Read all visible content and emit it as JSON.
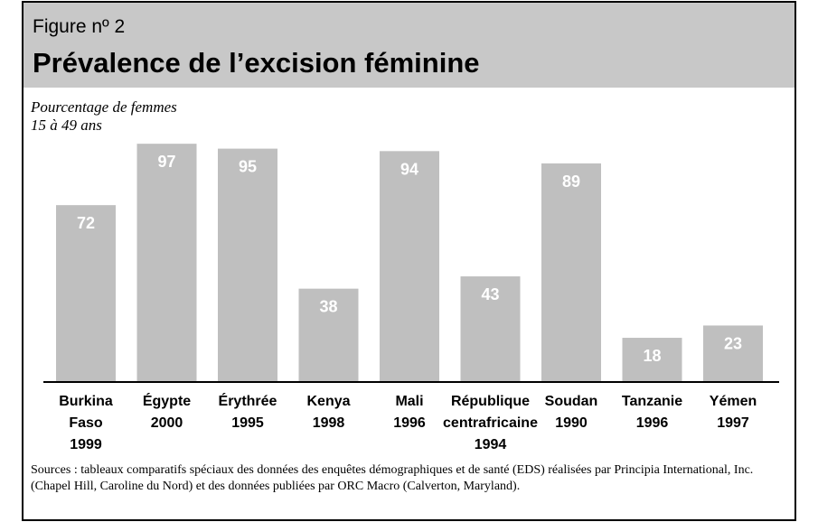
{
  "chart_data": {
    "type": "bar",
    "figure_label": "Figure nº 2",
    "title": "Prévalence de l’excision féminine",
    "y_label": [
      "Pourcentage de femmes",
      "15 à 49 ans"
    ],
    "categories": [
      [
        "Burkina",
        "Faso",
        "1999"
      ],
      [
        "Égypte",
        "2000"
      ],
      [
        "Érythrée",
        "1995"
      ],
      [
        "Kenya",
        "1998"
      ],
      [
        "Mali",
        "1996"
      ],
      [
        "République",
        "centrafricaine",
        "1994"
      ],
      [
        "Soudan",
        "1990"
      ],
      [
        "Tanzanie",
        "1996"
      ],
      [
        "Yémen",
        "1997"
      ]
    ],
    "values": [
      72,
      97,
      95,
      38,
      94,
      43,
      89,
      18,
      23
    ],
    "color": "#bfbfbf",
    "ylim": [
      0,
      100
    ],
    "source": "Sources : tableaux comparatifs spéciaux des données des enquêtes démographiques et de santé (EDS) réalisées par Principia International, Inc. (Chapel Hill, Caroline du Nord) et des données publiées par ORC Macro (Calverton, Maryland)."
  }
}
